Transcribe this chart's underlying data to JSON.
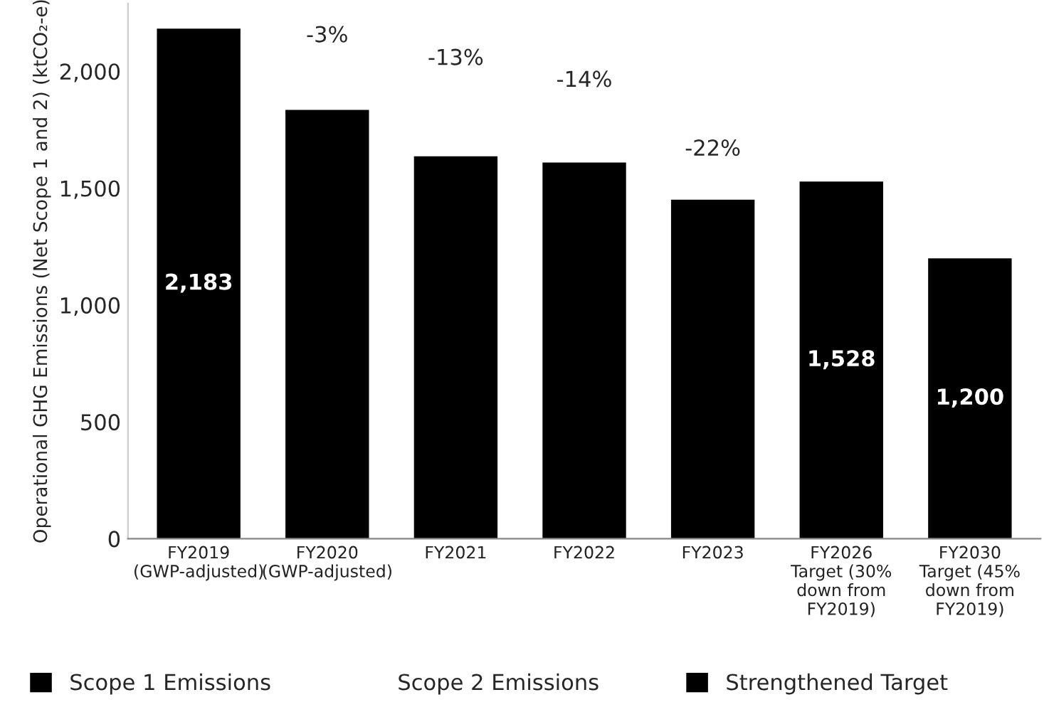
{
  "chart_data": {
    "type": "bar",
    "ylabel": "Operational GHG Emissions (Net Scope 1 and 2) (ktCO₂-e)",
    "categories": [
      "FY2019\n(GWP-adjusted)",
      "FY2020\n(GWP-adjusted)",
      "FY2021",
      "FY2022",
      "FY2023",
      "FY2026\nTarget (30%\ndown from\nFY2019)",
      "FY2030\nTarget (45%\ndown from\nFY2019)"
    ],
    "series": [
      {
        "name": "Scope 1 Emissions",
        "color": "#000000",
        "values": [
          2183,
          1835,
          1636,
          1610,
          1451,
          null,
          null
        ],
        "value_labels": [
          "2,183",
          null,
          null,
          null,
          null,
          null,
          null
        ]
      },
      {
        "name": "Scope 2 Emissions",
        "values": [
          null,
          null,
          null,
          null,
          null,
          null,
          null
        ]
      },
      {
        "name": "Strengthened Target",
        "color": "#000000",
        "values": [
          null,
          null,
          null,
          null,
          null,
          1528,
          1200
        ],
        "value_labels": [
          null,
          null,
          null,
          null,
          null,
          "1,528",
          "1,200"
        ]
      }
    ],
    "ylim": [
      0,
      2290
    ],
    "yticks": [
      0,
      {
        "value": 500,
        "label": "500"
      },
      {
        "value": 1000,
        "label": "1,000"
      },
      {
        "value": 1500,
        "label": "1,500"
      },
      {
        "value": 2000,
        "label": "2,000"
      }
    ],
    "annotations": [
      "-3%",
      "-13%",
      "-14%",
      "-22%"
    ],
    "grid": false,
    "legend": "bottom"
  }
}
